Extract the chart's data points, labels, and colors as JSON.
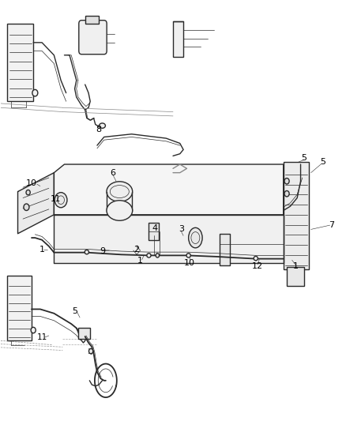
{
  "bg_color": "#ffffff",
  "line_color": "#2a2a2a",
  "label_color": "#000000",
  "figsize": [
    4.38,
    5.33
  ],
  "dpi": 100,
  "lw_main": 1.0,
  "lw_thin": 0.5,
  "label_fontsize": 8.0
}
